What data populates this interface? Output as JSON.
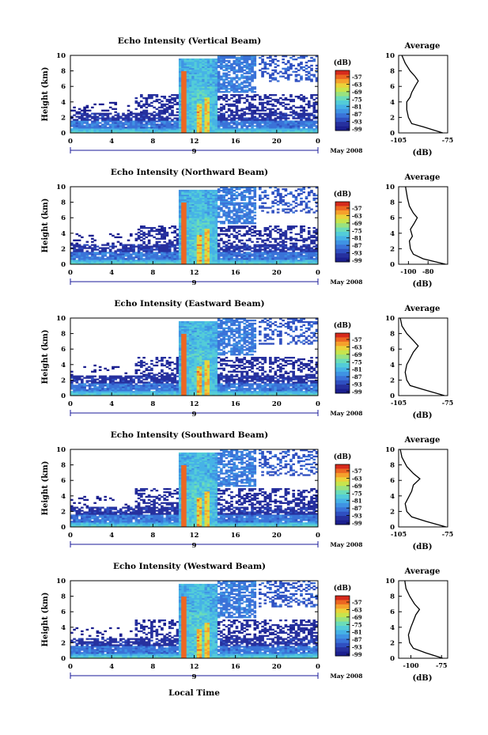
{
  "figure": {
    "xlabel_bottom": "Local Time",
    "date_label": "May 2008",
    "date_day": "9",
    "y_axis_label": "Height (km)",
    "colorbar_unit": "(dB)",
    "avg_title": "Average",
    "avg_xlabel": "(dB)"
  },
  "chart_data": [
    {
      "type": "heatmap",
      "title": "Echo Intensity (Vertical Beam)",
      "xlim": [
        0,
        24
      ],
      "ylim": [
        0,
        10
      ],
      "xticks": [
        "0",
        "4",
        "8",
        "12",
        "16",
        "20",
        "0"
      ],
      "yticks": [
        "0",
        "2",
        "4",
        "6",
        "8",
        "10"
      ],
      "colorbar_ticks": [
        "-57",
        "-63",
        "-69",
        "-75",
        "-81",
        "-87",
        "-93",
        "-99"
      ],
      "average": {
        "xlim": [
          -105,
          -75
        ],
        "xticks": [
          "-105",
          "-75"
        ],
        "profile": [
          [
            -78,
            0
          ],
          [
            -90,
            0.8
          ],
          [
            -97,
            1.2
          ],
          [
            -99,
            2
          ],
          [
            -100,
            3
          ],
          [
            -100,
            4
          ],
          [
            -98,
            4.6
          ],
          [
            -97,
            5.2
          ],
          [
            -95,
            6
          ],
          [
            -93,
            6.7
          ],
          [
            -95,
            7.3
          ],
          [
            -98,
            8
          ],
          [
            -101,
            9
          ],
          [
            -103,
            10
          ]
        ]
      }
    },
    {
      "type": "heatmap",
      "title": "Echo Intensity (Northward Beam)",
      "xlim": [
        0,
        24
      ],
      "ylim": [
        0,
        10
      ],
      "xticks": [
        "0",
        "4",
        "8",
        "12",
        "16",
        "20",
        "0"
      ],
      "yticks": [
        "0",
        "2",
        "4",
        "6",
        "8",
        "10"
      ],
      "colorbar_ticks": [
        "-57",
        "-63",
        "-69",
        "-75",
        "-81",
        "-87",
        "-93",
        "-99"
      ],
      "average": {
        "xlim": [
          -110,
          -60
        ],
        "xticks": [
          "-100",
          "-80"
        ],
        "profile": [
          [
            -62,
            0
          ],
          [
            -85,
            0.7
          ],
          [
            -95,
            1.3
          ],
          [
            -98,
            2
          ],
          [
            -99,
            3
          ],
          [
            -96,
            3.6
          ],
          [
            -98,
            4.5
          ],
          [
            -94,
            5.3
          ],
          [
            -91,
            6
          ],
          [
            -95,
            6.6
          ],
          [
            -99,
            7.5
          ],
          [
            -101,
            8.5
          ],
          [
            -103,
            10
          ]
        ]
      }
    },
    {
      "type": "heatmap",
      "title": "Echo Intensity (Eastward Beam)",
      "xlim": [
        0,
        24
      ],
      "ylim": [
        0,
        10
      ],
      "xticks": [
        "0",
        "4",
        "8",
        "12",
        "16",
        "20",
        "0"
      ],
      "yticks": [
        "0",
        "2",
        "4",
        "6",
        "8",
        "10"
      ],
      "colorbar_ticks": [
        "-57",
        "-63",
        "-69",
        "-75",
        "-81",
        "-87",
        "-93",
        "-99"
      ],
      "average": {
        "xlim": [
          -105,
          -75
        ],
        "xticks": [
          "-105",
          "-75"
        ],
        "profile": [
          [
            -77,
            0
          ],
          [
            -90,
            0.8
          ],
          [
            -98,
            1.3
          ],
          [
            -100,
            2
          ],
          [
            -101,
            3
          ],
          [
            -100,
            4
          ],
          [
            -98,
            4.8
          ],
          [
            -96,
            5.6
          ],
          [
            -93,
            6.4
          ],
          [
            -96,
            7.1
          ],
          [
            -100,
            8
          ],
          [
            -103,
            9
          ],
          [
            -104,
            10
          ]
        ]
      }
    },
    {
      "type": "heatmap",
      "title": "Echo Intensity (Southward Beam)",
      "xlim": [
        0,
        24
      ],
      "ylim": [
        0,
        10
      ],
      "xticks": [
        "0",
        "4",
        "8",
        "12",
        "16",
        "20",
        "0"
      ],
      "yticks": [
        "0",
        "2",
        "4",
        "6",
        "8",
        "10"
      ],
      "colorbar_ticks": [
        "-57",
        "-63",
        "-69",
        "-75",
        "-81",
        "-87",
        "-93",
        "-99"
      ],
      "average": {
        "xlim": [
          -105,
          -75
        ],
        "xticks": [
          "-105",
          "-75"
        ],
        "profile": [
          [
            -76,
            0
          ],
          [
            -88,
            0.7
          ],
          [
            -97,
            1.3
          ],
          [
            -100,
            2
          ],
          [
            -101,
            3
          ],
          [
            -99,
            3.8
          ],
          [
            -97,
            4.6
          ],
          [
            -96,
            5.4
          ],
          [
            -92,
            6.2
          ],
          [
            -96,
            6.9
          ],
          [
            -100,
            7.8
          ],
          [
            -103,
            9
          ],
          [
            -104,
            10
          ]
        ]
      }
    },
    {
      "type": "heatmap",
      "title": "Echo Intensity (Westward Beam)",
      "xlim": [
        0,
        24
      ],
      "ylim": [
        0,
        10
      ],
      "xticks": [
        "0",
        "4",
        "8",
        "12",
        "16",
        "20",
        "0"
      ],
      "yticks": [
        "0",
        "2",
        "4",
        "6",
        "8",
        "10"
      ],
      "colorbar_ticks": [
        "-57",
        "-63",
        "-69",
        "-75",
        "-81",
        "-87",
        "-93",
        "-99"
      ],
      "average": {
        "xlim": [
          -110,
          -70
        ],
        "xticks": [
          "-100",
          "-75"
        ],
        "profile": [
          [
            -74,
            0
          ],
          [
            -88,
            0.7
          ],
          [
            -98,
            1.3
          ],
          [
            -101,
            2
          ],
          [
            -102,
            3
          ],
          [
            -100,
            4
          ],
          [
            -98,
            4.8
          ],
          [
            -96,
            5.6
          ],
          [
            -93,
            6.3
          ],
          [
            -97,
            7
          ],
          [
            -101,
            8
          ],
          [
            -104,
            9
          ],
          [
            -105,
            10
          ]
        ]
      }
    }
  ]
}
